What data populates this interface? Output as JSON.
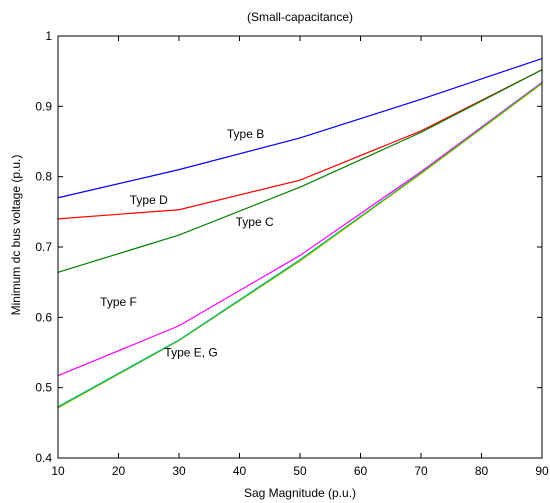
{
  "chart_data": {
    "type": "line",
    "title": "(Small-capacitance)",
    "xlabel": "Sag Magnitude (p.u.)",
    "ylabel": "Minimum dc bus voltage (p.u.)",
    "xlim": [
      10,
      90
    ],
    "ylim": [
      0.4,
      1.0
    ],
    "x_ticks": [
      10,
      20,
      30,
      40,
      50,
      60,
      70,
      80,
      90
    ],
    "y_ticks": [
      0.4,
      0.5,
      0.6,
      0.7,
      0.8,
      0.9,
      1.0
    ],
    "x_tick_labels": [
      "10",
      "20",
      "30",
      "40",
      "50",
      "60",
      "70",
      "80",
      "90"
    ],
    "y_tick_labels": [
      "0.4",
      "0.5",
      "0.6",
      "0.7",
      "0.8",
      "0.9",
      "1"
    ],
    "grid": false,
    "legend": "none",
    "series": [
      {
        "key": "b",
        "color": "#0000ff",
        "x": [
          10,
          30,
          50,
          70,
          90
        ],
        "y": [
          0.77,
          0.81,
          0.855,
          0.91,
          0.968
        ]
      },
      {
        "key": "d",
        "color": "#ff0000",
        "x": [
          10,
          30,
          50,
          70,
          90
        ],
        "y": [
          0.74,
          0.753,
          0.795,
          0.865,
          0.952
        ]
      },
      {
        "key": "c",
        "color": "#008000",
        "x": [
          10,
          30,
          50,
          70,
          90
        ],
        "y": [
          0.664,
          0.717,
          0.785,
          0.863,
          0.952
        ]
      },
      {
        "key": "f",
        "color": "#ff00ff",
        "x": [
          10,
          30,
          50,
          70,
          90
        ],
        "y": [
          0.517,
          0.588,
          0.688,
          0.807,
          0.934
        ]
      },
      {
        "key": "e",
        "color": "#00c8c8",
        "x": [
          10,
          30,
          50,
          70,
          90
        ],
        "y": [
          0.473,
          0.568,
          0.682,
          0.805,
          0.933
        ]
      },
      {
        "key": "g",
        "color": "#e6c800",
        "x": [
          10,
          30,
          50,
          70,
          90
        ],
        "y": [
          0.471,
          0.567,
          0.68,
          0.804,
          0.932
        ]
      },
      {
        "key": "eg-overlay",
        "color": "#3cb43c",
        "x": [
          10,
          30,
          50,
          70,
          90
        ],
        "y": [
          0.472,
          0.567,
          0.681,
          0.805,
          0.933
        ]
      }
    ],
    "annotations": [
      {
        "key": "b",
        "text": "Type B",
        "x": 41,
        "y": 0.855
      },
      {
        "key": "d",
        "text": "Type D",
        "x": 25,
        "y": 0.761
      },
      {
        "key": "c",
        "text": "Type C",
        "x": 42.5,
        "y": 0.73
      },
      {
        "key": "f",
        "text": "Type F",
        "x": 20,
        "y": 0.616
      },
      {
        "key": "eg",
        "text": "Type E, G",
        "x": 32,
        "y": 0.544
      }
    ]
  }
}
